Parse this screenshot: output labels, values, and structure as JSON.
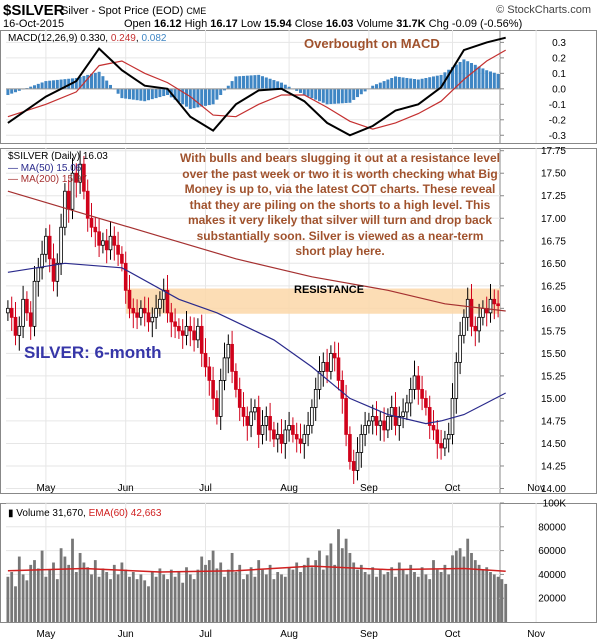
{
  "header": {
    "symbol": "$SILVER",
    "description": "Silver - Spot Price (EOD)",
    "exchange": "CME",
    "date": "16-Oct-2015",
    "open_label": "Open",
    "open": "16.12",
    "high_label": "High",
    "high": "16.17",
    "low_label": "Low",
    "low": "15.94",
    "close_label": "Close",
    "close": "16.03",
    "volume_label": "Volume",
    "volume": "31.7K",
    "chg_label": "Chg",
    "chg": "-0.09 (-0.56%)",
    "watermark": "© StockCharts.com"
  },
  "annotations": {
    "macd_note": "Overbought on MACD",
    "comment": "With bulls and bears slugging it out at a resistance level over the past week or two it is worth checking what Big Money is up to, via the latest COT charts. These reveal that they are piling on the shorts to a high level. This makes it very likely that silver will turn and drop back substantially soon. Silver is viewed as a near-term short play here.",
    "silver_label": "SILVER: 6-month",
    "resistance": "RESISTANCE"
  },
  "colors": {
    "up": "#000000",
    "down": "#d0021b",
    "ma50": "#2a2a8c",
    "ma200": "#a53030",
    "resistance_band": "#fbd7a8",
    "histogram": "#3f86c4",
    "macd_line": "#000000",
    "signal_line": "#c43030",
    "volume_bar": "#777777",
    "volume_ema": "#d02020",
    "annotation": "#a0522d",
    "label_blue": "#3636a8"
  },
  "chart_data": [
    {
      "type": "line",
      "panel": "MACD",
      "legend": [
        "MACD(12,26,9)",
        "0.330",
        "0.249",
        "0.082"
      ],
      "ylim": [
        -0.35,
        0.38
      ],
      "yticks": [
        "0.3",
        "0.2",
        "0.1",
        "0.0",
        "-0.1",
        "-0.2",
        "-0.3"
      ],
      "ytick_values": [
        0.3,
        0.2,
        0.1,
        0.0,
        -0.1,
        -0.2,
        -0.3
      ],
      "x": [
        0,
        10,
        18,
        24,
        30,
        36,
        42,
        48,
        54,
        60,
        66,
        72,
        78,
        84,
        90,
        96,
        102,
        108,
        114,
        120,
        126,
        131
      ],
      "series": [
        {
          "name": "MACD",
          "values": [
            -0.22,
            -0.05,
            0.05,
            0.26,
            0.12,
            0.02,
            0.0,
            -0.18,
            -0.27,
            -0.1,
            -0.01,
            0.0,
            -0.08,
            -0.22,
            -0.3,
            -0.24,
            -0.14,
            -0.1,
            0.01,
            0.25,
            0.3,
            0.33
          ]
        },
        {
          "name": "Signal",
          "values": [
            -0.18,
            -0.1,
            -0.02,
            0.15,
            0.18,
            0.1,
            0.04,
            -0.05,
            -0.17,
            -0.18,
            -0.1,
            -0.04,
            -0.04,
            -0.12,
            -0.21,
            -0.26,
            -0.22,
            -0.16,
            -0.08,
            0.06,
            0.18,
            0.25
          ]
        },
        {
          "name": "Histogram",
          "values": [
            -0.04,
            0.05,
            0.07,
            0.11,
            -0.06,
            -0.08,
            -0.04,
            -0.13,
            -0.1,
            0.08,
            0.09,
            0.04,
            -0.04,
            -0.1,
            -0.09,
            0.02,
            0.08,
            0.06,
            0.09,
            0.19,
            0.12,
            0.08
          ]
        }
      ]
    },
    {
      "type": "candlestick",
      "panel": "Price",
      "legend": [
        "$SILVER (Daily) 16.03",
        "MA(50) 15.06",
        "MA(200) 15.97"
      ],
      "ylim": [
        13.95,
        17.78
      ],
      "yticks": [
        "17.75",
        "17.50",
        "17.25",
        "17.00",
        "16.75",
        "16.50",
        "16.25",
        "16.00",
        "15.75",
        "15.50",
        "15.25",
        "15.00",
        "14.75",
        "14.50",
        "14.25",
        "14.00"
      ],
      "ytick_values": [
        17.75,
        17.5,
        17.25,
        17.0,
        16.75,
        16.5,
        16.25,
        16.0,
        15.75,
        15.5,
        15.25,
        15.0,
        14.75,
        14.5,
        14.25,
        14.0
      ],
      "resistance_band": [
        15.94,
        16.22
      ],
      "xlabels": [
        "May",
        "Jun",
        "Jul",
        "Aug",
        "Sep",
        "Oct",
        "Nov"
      ],
      "xlabel_positions": [
        10,
        31,
        52,
        74,
        95,
        117,
        139
      ],
      "close": [
        16.0,
        15.9,
        15.7,
        15.8,
        16.1,
        15.95,
        15.8,
        16.3,
        16.45,
        16.6,
        16.8,
        16.55,
        16.3,
        16.5,
        16.9,
        17.3,
        17.1,
        17.5,
        17.4,
        17.6,
        17.3,
        17.0,
        16.9,
        16.85,
        16.7,
        16.75,
        16.65,
        16.8,
        16.7,
        16.6,
        16.5,
        16.2,
        16.0,
        15.95,
        15.9,
        16.0,
        15.95,
        15.85,
        15.9,
        16.0,
        16.1,
        16.2,
        15.95,
        15.85,
        15.8,
        15.75,
        15.7,
        15.8,
        15.75,
        15.65,
        15.8,
        15.5,
        15.35,
        15.2,
        15.0,
        14.8,
        15.2,
        15.45,
        15.6,
        15.3,
        15.1,
        14.9,
        14.8,
        14.7,
        14.85,
        14.9,
        14.6,
        14.7,
        14.8,
        14.65,
        14.55,
        14.6,
        14.5,
        14.65,
        14.7,
        14.6,
        14.55,
        14.5,
        14.6,
        14.7,
        14.9,
        15.1,
        15.3,
        15.4,
        15.3,
        15.5,
        15.45,
        15.2,
        15.0,
        14.6,
        14.3,
        14.2,
        14.4,
        14.6,
        14.7,
        14.75,
        14.8,
        14.7,
        14.75,
        14.65,
        14.8,
        14.9,
        14.7,
        14.8,
        14.85,
        14.95,
        15.1,
        15.25,
        15.1,
        15.0,
        14.9,
        14.7,
        14.65,
        14.5,
        14.45,
        14.55,
        14.6,
        15.0,
        15.4,
        15.7,
        15.9,
        16.1,
        15.8,
        15.75,
        15.9,
        16.0,
        15.95,
        16.1,
        16.05,
        16.03
      ],
      "series": [
        {
          "name": "MA(50)",
          "x": [
            0,
            15,
            30,
            45,
            55,
            70,
            80,
            90,
            100,
            110,
            114,
            120,
            126,
            131
          ],
          "values": [
            16.4,
            16.5,
            16.45,
            16.1,
            15.95,
            15.65,
            15.35,
            15.0,
            14.82,
            14.72,
            14.75,
            14.82,
            14.95,
            15.06
          ]
        },
        {
          "name": "MA(200)",
          "x": [
            0,
            20,
            40,
            60,
            80,
            100,
            115,
            131
          ],
          "values": [
            17.3,
            17.05,
            16.8,
            16.55,
            16.35,
            16.2,
            16.05,
            15.97
          ]
        }
      ]
    },
    {
      "type": "bar",
      "panel": "Volume",
      "legend": [
        "Volume 31,670",
        "EMA(60) 42,663"
      ],
      "ylim": [
        0,
        100000
      ],
      "yticks": [
        "100K",
        "80000",
        "60000",
        "40000",
        "20000"
      ],
      "ytick_values": [
        100000,
        80000,
        60000,
        40000,
        20000
      ],
      "xlabels": [
        "May",
        "Jun",
        "Jul",
        "Aug",
        "Sep",
        "Oct",
        "Nov"
      ],
      "xlabel_positions": [
        10,
        31,
        52,
        74,
        95,
        117,
        139
      ],
      "values": [
        38000,
        42000,
        30000,
        55000,
        40000,
        35000,
        48000,
        52000,
        45000,
        60000,
        38000,
        44000,
        50000,
        36000,
        62000,
        55000,
        48000,
        70000,
        42000,
        58000,
        50000,
        46000,
        40000,
        52000,
        38000,
        45000,
        42000,
        36000,
        48000,
        40000,
        50000,
        44000,
        38000,
        42000,
        36000,
        40000,
        35000,
        30000,
        42000,
        38000,
        45000,
        40000,
        36000,
        44000,
        38000,
        42000,
        33000,
        46000,
        40000,
        36000,
        44000,
        55000,
        48000,
        52000,
        60000,
        45000,
        50000,
        38000,
        44000,
        58000,
        42000,
        48000,
        36000,
        40000,
        46000,
        38000,
        52000,
        44000,
        40000,
        48000,
        36000,
        42000,
        40000,
        38000,
        46000,
        44000,
        50000,
        42000,
        48000,
        54000,
        46000,
        52000,
        60000,
        44000,
        56000,
        66000,
        48000,
        78000,
        62000,
        70000,
        58000,
        50000,
        44000,
        48000,
        42000,
        40000,
        46000,
        38000,
        44000,
        40000,
        42000,
        46000,
        38000,
        50000,
        44000,
        40000,
        48000,
        42000,
        38000,
        46000,
        40000,
        36000,
        52000,
        44000,
        42000,
        48000,
        40000,
        56000,
        60000,
        62000,
        55000,
        70000,
        58000,
        52000,
        48000,
        44000,
        46000,
        42000,
        40000,
        38000,
        36000,
        32000
      ],
      "series": [
        {
          "name": "EMA(60)",
          "x": [
            0,
            20,
            40,
            60,
            80,
            100,
            120,
            131
          ],
          "values": [
            43000,
            45000,
            42000,
            43000,
            47000,
            44000,
            45000,
            42663
          ]
        }
      ]
    }
  ]
}
